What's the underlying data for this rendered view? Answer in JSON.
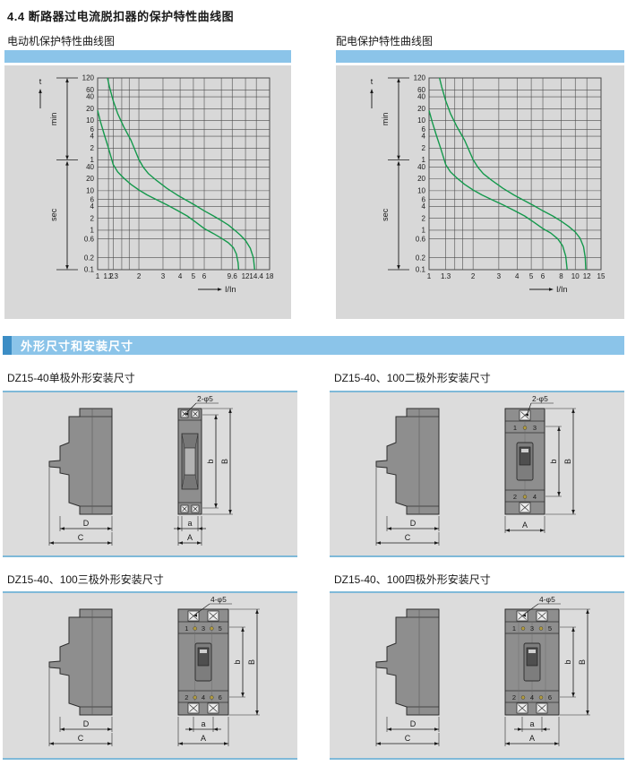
{
  "page": {
    "title": "4.4  断路器过电流脱扣器的保护特性曲线图",
    "section_title": "外形尺寸和安装尺寸"
  },
  "colors": {
    "header_blue": "#8bc4e9",
    "accent_blue": "#3c8dc5",
    "panel_gray": "#d8d8d8",
    "drawing_panel_gray": "#dcdcdc",
    "panel_border_blue": "#7fb9d8",
    "curve_green": "#14994c",
    "breaker_body_gray": "#8e8e8e"
  },
  "chart_data": [
    {
      "type": "line",
      "title": "电动机保护特性曲线图",
      "xlabel": "I/In",
      "ylabel_top": "t",
      "ylabel_min": "min",
      "ylabel_sec": "sec",
      "xlim": [
        1,
        18
      ],
      "ylim_sec": [
        0.1,
        7200
      ],
      "x_ticks": [
        1,
        1.2,
        1.3,
        2,
        3,
        4,
        5,
        6,
        9.6,
        12,
        14.4,
        18
      ],
      "x_minor": [
        1.5,
        1.7,
        8
      ],
      "y_ticks_sec": [
        0.1,
        0.2,
        0.6,
        1,
        2,
        4,
        6,
        10,
        20,
        40
      ],
      "y_ticks_min": [
        1,
        2,
        4,
        6,
        10,
        20,
        40,
        60,
        120
      ],
      "grid": true,
      "legend": "none",
      "series": [
        {
          "name": "trip-band-min",
          "points": [
            [
              1,
              1080
            ],
            [
              1.05,
              560
            ],
            [
              1.12,
              260
            ],
            [
              1.2,
              120
            ],
            [
              1.3,
              46
            ],
            [
              1.4,
              30
            ],
            [
              1.55,
              21
            ],
            [
              1.75,
              14.5
            ],
            [
              2,
              10.5
            ],
            [
              2.3,
              7.8
            ],
            [
              2.7,
              5.9
            ],
            [
              3.2,
              4.4
            ],
            [
              3.8,
              3.2
            ],
            [
              4.5,
              2.3
            ],
            [
              5.2,
              1.6
            ],
            [
              6,
              1.1
            ],
            [
              7,
              0.82
            ],
            [
              8,
              0.63
            ],
            [
              9,
              0.48
            ],
            [
              9.8,
              0.36
            ],
            [
              10.3,
              0.25
            ],
            [
              10.6,
              0.15
            ],
            [
              10.7,
              0.1
            ]
          ]
        },
        {
          "name": "trip-band-max",
          "points": [
            [
              1.18,
              7200
            ],
            [
              1.22,
              4300
            ],
            [
              1.3,
              1900
            ],
            [
              1.4,
              900
            ],
            [
              1.55,
              420
            ],
            [
              1.75,
              190
            ],
            [
              2,
              62
            ],
            [
              2.15,
              40
            ],
            [
              2.35,
              27
            ],
            [
              2.7,
              18
            ],
            [
              3.2,
              11.5
            ],
            [
              3.8,
              7.8
            ],
            [
              4.5,
              5.6
            ],
            [
              5.2,
              4.2
            ],
            [
              6,
              3.1
            ],
            [
              7,
              2.3
            ],
            [
              8,
              1.75
            ],
            [
              9,
              1.35
            ],
            [
              10,
              1.0
            ],
            [
              11,
              0.75
            ],
            [
              12,
              0.55
            ],
            [
              13,
              0.35
            ],
            [
              13.7,
              0.2
            ],
            [
              14,
              0.1
            ]
          ]
        }
      ]
    },
    {
      "type": "line",
      "title": "配电保护特性曲线图",
      "xlabel": "I/In",
      "ylabel_top": "t",
      "ylabel_min": "min",
      "ylabel_sec": "sec",
      "xlim": [
        1,
        15
      ],
      "ylim_sec": [
        0.1,
        7200
      ],
      "x_ticks": [
        1,
        1.3,
        2,
        3,
        4,
        5,
        6,
        8,
        10,
        12,
        15
      ],
      "x_minor": [
        1.5,
        1.7
      ],
      "y_ticks_sec": [
        0.1,
        0.2,
        0.6,
        1,
        2,
        4,
        6,
        10,
        20,
        40
      ],
      "y_ticks_min": [
        1,
        2,
        4,
        6,
        10,
        20,
        40,
        60,
        120
      ],
      "grid": true,
      "legend": "none",
      "series": [
        {
          "name": "trip-band-min",
          "points": [
            [
              1,
              1080
            ],
            [
              1.05,
              560
            ],
            [
              1.12,
              260
            ],
            [
              1.2,
              120
            ],
            [
              1.3,
              46
            ],
            [
              1.4,
              30
            ],
            [
              1.55,
              21
            ],
            [
              1.75,
              14.5
            ],
            [
              2,
              10.5
            ],
            [
              2.3,
              7.8
            ],
            [
              2.7,
              5.9
            ],
            [
              3.2,
              4.4
            ],
            [
              3.8,
              3.2
            ],
            [
              4.5,
              2.3
            ],
            [
              5.2,
              1.6
            ],
            [
              6,
              1.1
            ],
            [
              6.8,
              0.85
            ],
            [
              7.6,
              0.6
            ],
            [
              8.2,
              0.4
            ],
            [
              8.6,
              0.22
            ],
            [
              8.8,
              0.1
            ]
          ]
        },
        {
          "name": "trip-band-max",
          "points": [
            [
              1.18,
              7200
            ],
            [
              1.22,
              4300
            ],
            [
              1.3,
              1900
            ],
            [
              1.4,
              900
            ],
            [
              1.55,
              420
            ],
            [
              1.75,
              190
            ],
            [
              2,
              62
            ],
            [
              2.15,
              40
            ],
            [
              2.35,
              27
            ],
            [
              2.7,
              18
            ],
            [
              3.2,
              11.5
            ],
            [
              3.8,
              7.8
            ],
            [
              4.5,
              5.6
            ],
            [
              5.2,
              4.2
            ],
            [
              6,
              3.1
            ],
            [
              7,
              2.3
            ],
            [
              8,
              1.7
            ],
            [
              9,
              1.25
            ],
            [
              10,
              0.9
            ],
            [
              10.8,
              0.62
            ],
            [
              11.4,
              0.38
            ],
            [
              11.7,
              0.2
            ],
            [
              11.8,
              0.1
            ]
          ]
        }
      ]
    }
  ],
  "drawings": [
    {
      "title": "DZ15-40单极外形安装尺寸",
      "poles": 1,
      "hole_label": "2-φ5",
      "terminals_top": "",
      "terminals_bottom": "",
      "dims": {
        "inner_w": "a",
        "outer_w": "A",
        "inner_h": "b",
        "outer_h": "B",
        "side_inner": "D",
        "side_outer": "C"
      }
    },
    {
      "title": "DZ15-40、100二极外形安装尺寸",
      "poles": 2,
      "hole_label": "2-φ5",
      "terminals_top": "1 3",
      "terminals_bottom": "2 4",
      "dims": {
        "outer_w": "A",
        "inner_h": "b",
        "outer_h": "B",
        "side_inner": "D",
        "side_outer": "C"
      }
    },
    {
      "title": "DZ15-40、100三极外形安装尺寸",
      "poles": 3,
      "hole_label": "4-φ5",
      "terminals_top": "1 3 5",
      "terminals_bottom": "2 4 6",
      "dims": {
        "inner_w": "a",
        "outer_w": "A",
        "inner_h": "b",
        "outer_h": "B",
        "side_inner": "D",
        "side_outer": "C"
      }
    },
    {
      "title": "DZ15-40、100四极外形安装尺寸",
      "poles": 4,
      "hole_label": "4-φ5",
      "terminals_top": "1 3 5",
      "terminals_bottom": "2 4 6",
      "dims": {
        "inner_w": "a",
        "outer_w": "A",
        "inner_h": "b",
        "outer_h": "B",
        "side_inner": "D",
        "side_outer": "C"
      }
    }
  ]
}
